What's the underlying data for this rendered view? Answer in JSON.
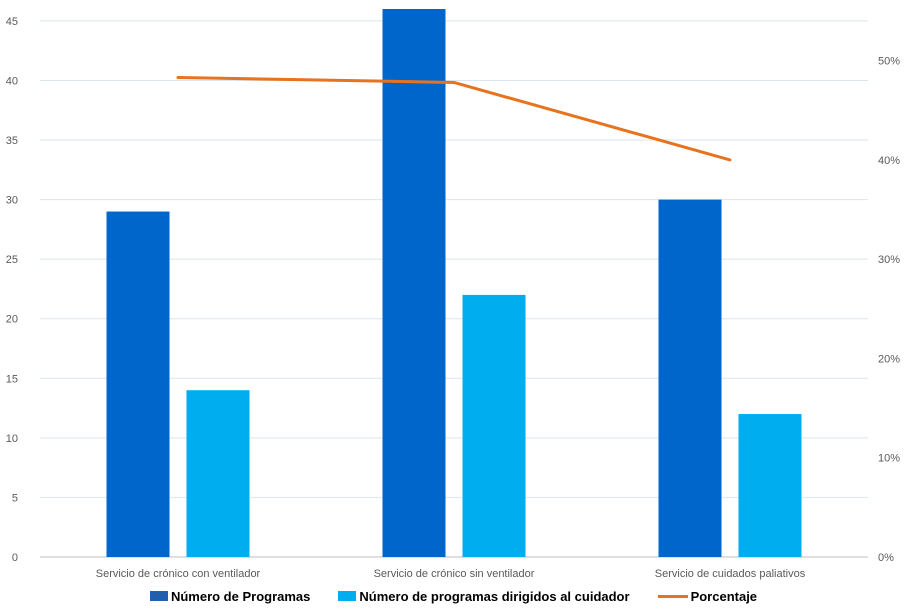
{
  "chart_data": {
    "type": "bar",
    "categories": [
      "Servicio de crónico con ventilador",
      "Servicio de crónico sin ventilador",
      "Servicio de cuidados paliativos"
    ],
    "series": [
      {
        "name": "Número de Programas",
        "type": "bar",
        "axis": "left",
        "color": "#0066CC",
        "legend_color": "#1F5FAD",
        "values": [
          29,
          46,
          30
        ]
      },
      {
        "name": "Número de programas dirigidos al cuidador",
        "type": "bar",
        "axis": "left",
        "color": "#00AEEF",
        "values": [
          14,
          22,
          12
        ]
      },
      {
        "name": "Porcentaje",
        "type": "line",
        "axis": "right",
        "color": "#E8731F",
        "values": [
          48.3,
          47.8,
          40
        ]
      }
    ],
    "y_left": {
      "ticks": [
        0,
        5,
        10,
        15,
        20,
        25,
        30,
        35,
        40,
        45
      ],
      "ylim": [
        0,
        46
      ]
    },
    "y_right": {
      "ticks": [
        "0%",
        "10%",
        "20%",
        "30%",
        "40%",
        "50%"
      ],
      "ylim": [
        0,
        55.2
      ]
    },
    "grid": true,
    "legend_position": "bottom"
  }
}
